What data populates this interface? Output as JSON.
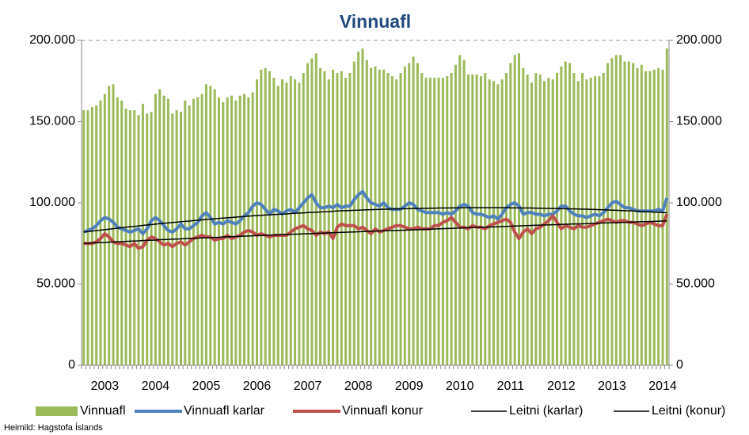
{
  "chart_data": {
    "type": "bar",
    "title": "Vinnuafl",
    "source": "Heimild: Hagstofa Íslands",
    "categories": [
      null,
      null,
      null,
      null,
      null,
      "2003",
      null,
      null,
      null,
      null,
      null,
      null,
      null,
      null,
      null,
      null,
      null,
      "2004",
      null,
      null,
      null,
      null,
      null,
      null,
      null,
      null,
      null,
      null,
      null,
      "2005",
      null,
      null,
      null,
      null,
      null,
      null,
      null,
      null,
      null,
      null,
      null,
      "2006",
      null,
      null,
      null,
      null,
      null,
      null,
      null,
      null,
      null,
      null,
      null,
      "2007",
      null,
      null,
      null,
      null,
      null,
      null,
      null,
      null,
      null,
      null,
      null,
      "2008",
      null,
      null,
      null,
      null,
      null,
      null,
      null,
      null,
      null,
      null,
      null,
      "2009",
      null,
      null,
      null,
      null,
      null,
      null,
      null,
      null,
      null,
      null,
      null,
      "2010",
      null,
      null,
      null,
      null,
      null,
      null,
      null,
      null,
      null,
      null,
      null,
      "2011",
      null,
      null,
      null,
      null,
      null,
      null,
      null,
      null,
      null,
      null,
      null,
      "2012",
      null,
      null,
      null,
      null,
      null,
      null,
      null,
      null,
      null,
      null,
      null,
      "2013",
      null,
      null,
      null,
      null,
      null,
      null,
      null,
      null,
      null,
      null,
      null,
      "2014",
      null
    ],
    "ylim": [
      0,
      200000
    ],
    "yticks": [
      {
        "value": 0,
        "label": "0"
      },
      {
        "value": 50000,
        "label": "50.000"
      },
      {
        "value": 100000,
        "label": "100.000"
      },
      {
        "value": 150000,
        "label": "150.000"
      },
      {
        "value": 200000,
        "label": "200.000"
      }
    ],
    "y2lim": [
      0,
      200000
    ],
    "y2ticks": [
      {
        "value": 0,
        "label": "0"
      },
      {
        "value": 50000,
        "label": "50.000"
      },
      {
        "value": 100000,
        "label": "100.000"
      },
      {
        "value": 150000,
        "label": "150.000"
      },
      {
        "value": 200000,
        "label": "200.000"
      }
    ],
    "grid": false,
    "series": [
      {
        "name": "Vinnuafl",
        "type": "bar",
        "color": "#9bbb59",
        "values": [
          157000,
          157000,
          159000,
          160000,
          163000,
          167000,
          172000,
          173000,
          165000,
          163000,
          158000,
          157000,
          157000,
          154000,
          161000,
          155000,
          156000,
          167000,
          170000,
          166000,
          164000,
          155000,
          157000,
          156000,
          163000,
          160000,
          164000,
          165000,
          167000,
          173000,
          172000,
          170000,
          165000,
          162000,
          165000,
          166000,
          163000,
          166000,
          167000,
          165000,
          168000,
          176000,
          182000,
          183000,
          181000,
          177000,
          172000,
          176000,
          174000,
          178000,
          176000,
          174000,
          180000,
          186000,
          189000,
          192000,
          183000,
          181000,
          176000,
          182000,
          180000,
          181000,
          177000,
          180000,
          187000,
          193000,
          195000,
          188000,
          183000,
          184000,
          182000,
          182000,
          180000,
          178000,
          176000,
          180000,
          184000,
          186000,
          190000,
          186000,
          180000,
          177000,
          177000,
          177000,
          177000,
          177000,
          178000,
          180000,
          185000,
          191000,
          188000,
          179000,
          179000,
          179000,
          178000,
          180000,
          176000,
          175000,
          173000,
          176000,
          180000,
          186000,
          191000,
          192000,
          183000,
          179000,
          174000,
          180000,
          179000,
          175000,
          177000,
          176000,
          180000,
          184000,
          187000,
          186000,
          180000,
          175000,
          180000,
          176000,
          177000,
          178000,
          178000,
          180000,
          186000,
          189000,
          191000,
          191000,
          187000,
          187000,
          186000,
          183000,
          185000,
          181000,
          181000,
          182000,
          183000,
          182000,
          195000
        ]
      },
      {
        "name": "Vinnuafl karlar",
        "type": "line",
        "width": 4,
        "color": "#4f81bd",
        "values": [
          82000,
          83000,
          84000,
          86000,
          89000,
          91000,
          90000,
          88000,
          85000,
          84000,
          83000,
          82000,
          83000,
          84000,
          81000,
          84000,
          89000,
          91000,
          89000,
          86000,
          83000,
          82000,
          84000,
          87000,
          84000,
          84000,
          86000,
          88000,
          92000,
          94000,
          91000,
          87000,
          88000,
          87000,
          89000,
          88000,
          87000,
          89000,
          92000,
          94000,
          98000,
          100000,
          99000,
          96000,
          93000,
          96000,
          95000,
          93000,
          95000,
          96000,
          94000,
          97000,
          100000,
          103000,
          105000,
          100000,
          97000,
          97000,
          98000,
          97000,
          99000,
          97000,
          98000,
          98000,
          102000,
          105000,
          107000,
          103000,
          100000,
          99000,
          98000,
          100000,
          97000,
          96000,
          96000,
          96000,
          98000,
          100000,
          99000,
          96000,
          95000,
          94000,
          94000,
          94000,
          94000,
          93000,
          94000,
          93000,
          95000,
          98000,
          99000,
          98000,
          94000,
          93000,
          93000,
          92000,
          91000,
          92000,
          90000,
          93000,
          97000,
          99000,
          100000,
          98000,
          93000,
          94000,
          94000,
          93000,
          93000,
          92000,
          93000,
          93000,
          95000,
          98000,
          98000,
          95000,
          93000,
          92000,
          92000,
          91000,
          92000,
          93000,
          92000,
          94000,
          97000,
          100000,
          101000,
          99000,
          97000,
          97000,
          96000,
          95000,
          95000,
          95000,
          95000,
          95000,
          96000,
          95000,
          103000
        ]
      },
      {
        "name": "Vinnuafl konur",
        "type": "line",
        "width": 4,
        "color": "#c0504d",
        "values": [
          75000,
          75000,
          75000,
          76000,
          78000,
          81000,
          79000,
          76000,
          75000,
          75000,
          74000,
          73000,
          75000,
          72000,
          73000,
          77000,
          79000,
          78000,
          76000,
          74000,
          75000,
          73000,
          75000,
          76000,
          74000,
          76000,
          78000,
          79000,
          80000,
          79000,
          79000,
          77000,
          78000,
          78000,
          80000,
          78000,
          79000,
          80000,
          82000,
          83000,
          82000,
          80000,
          81000,
          80000,
          79000,
          80000,
          80000,
          80000,
          80000,
          82000,
          84000,
          85000,
          86000,
          84000,
          83000,
          80000,
          82000,
          81000,
          82000,
          78000,
          85000,
          87000,
          86000,
          86000,
          86000,
          84000,
          85000,
          83000,
          81000,
          84000,
          82000,
          83000,
          84000,
          85000,
          86000,
          86000,
          85000,
          84000,
          84000,
          85000,
          84000,
          84000,
          84000,
          86000,
          86000,
          88000,
          89000,
          91000,
          88000,
          85000,
          85000,
          84000,
          86000,
          85000,
          85000,
          84000,
          86000,
          87000,
          88000,
          89000,
          90000,
          88000,
          82000,
          78000,
          82000,
          84000,
          81000,
          84000,
          85000,
          87000,
          89000,
          92000,
          88000,
          84000,
          86000,
          85000,
          84000,
          86000,
          85000,
          85000,
          86000,
          87000,
          88000,
          89000,
          90000,
          89000,
          88000,
          89000,
          89000,
          88000,
          88000,
          87000,
          86000,
          87000,
          88000,
          87000,
          86000,
          86000,
          93000
        ]
      },
      {
        "name": "Leitni (karlar)",
        "type": "line",
        "width": 1.5,
        "color": "#000000",
        "values": [
          82000,
          82300,
          82600,
          82900,
          83200,
          83500,
          83800,
          84100,
          84400,
          84700,
          85000,
          85300,
          85500,
          85800,
          86100,
          86400,
          86600,
          86900,
          87200,
          87400,
          87700,
          87900,
          88100,
          88400,
          88600,
          88800,
          89100,
          89300,
          89500,
          89800,
          90000,
          90200,
          90400,
          90600,
          90800,
          91000,
          91200,
          91400,
          91600,
          91800,
          92000,
          92200,
          92300,
          92500,
          92600,
          92800,
          92900,
          93100,
          93200,
          93400,
          93600,
          93700,
          93800,
          94000,
          94100,
          94200,
          94400,
          94500,
          94600,
          94800,
          95000,
          95100,
          95200,
          95300,
          95400,
          95500,
          95600,
          95700,
          95800,
          95900,
          96000,
          96100,
          96100,
          96200,
          96300,
          96300,
          96400,
          96400,
          96500,
          96500,
          96600,
          96600,
          96700,
          96700,
          96800,
          96800,
          96800,
          96900,
          96900,
          96900,
          97000,
          97000,
          97000,
          97000,
          97000,
          97000,
          97000,
          97000,
          97000,
          97000,
          97000,
          96900,
          96900,
          96900,
          96800,
          96800,
          96800,
          96700,
          96700,
          96600,
          96600,
          96500,
          96500,
          96400,
          96400,
          96300,
          96300,
          96200,
          96100,
          96100,
          96000,
          95900,
          95800,
          95700,
          95600,
          95500,
          95400,
          95300,
          95200,
          95100,
          95000,
          94900,
          94700,
          94600,
          94500,
          94300,
          94200,
          94000,
          93900
        ]
      },
      {
        "name": "Leitni (konur)",
        "type": "line",
        "width": 1.5,
        "color": "#000000",
        "values": [
          75000,
          75100,
          75300,
          75400,
          75500,
          75600,
          75800,
          75900,
          76000,
          76100,
          76300,
          76400,
          76500,
          76600,
          76800,
          76900,
          77000,
          77100,
          77300,
          77400,
          77500,
          77600,
          77700,
          77800,
          78000,
          78100,
          78200,
          78300,
          78400,
          78500,
          78600,
          78700,
          78800,
          79000,
          79100,
          79200,
          79300,
          79400,
          79500,
          79600,
          79700,
          79800,
          79900,
          80000,
          80100,
          80200,
          80300,
          80400,
          80500,
          80600,
          80700,
          80800,
          80900,
          81000,
          81100,
          81200,
          81300,
          81400,
          81500,
          81600,
          81700,
          81800,
          81900,
          82000,
          82100,
          82200,
          82300,
          82400,
          82500,
          82600,
          82700,
          82800,
          82900,
          83000,
          83000,
          83100,
          83200,
          83300,
          83400,
          83500,
          83600,
          83700,
          83800,
          83900,
          84000,
          84100,
          84200,
          84300,
          84400,
          84500,
          84600,
          84700,
          84800,
          84900,
          85000,
          85000,
          85100,
          85200,
          85300,
          85400,
          85500,
          85600,
          85700,
          85800,
          85900,
          86000,
          86100,
          86200,
          86300,
          86400,
          86400,
          86500,
          86600,
          86700,
          86800,
          86900,
          87000,
          87000,
          87100,
          87200,
          87300,
          87400,
          87500,
          87600,
          87700,
          87800,
          87800,
          87900,
          88000,
          88100,
          88200,
          88300,
          88400,
          88400,
          88500,
          88600,
          88700,
          88800,
          88900
        ]
      }
    ]
  }
}
